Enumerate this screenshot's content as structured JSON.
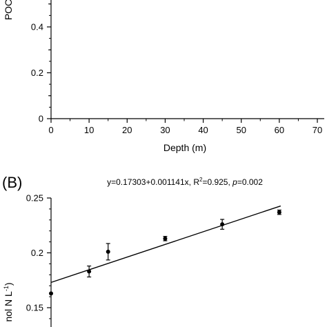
{
  "chart_data": [
    {
      "type": "scatter",
      "panel_label": "",
      "title": "",
      "xlabel": "Depth (m)",
      "ylabel": "POC",
      "xlim": [
        0,
        70
      ],
      "ylim": [
        0,
        0.6
      ],
      "xticks": [
        0,
        10,
        20,
        30,
        40,
        50,
        60,
        70
      ],
      "xtick_labels": [
        "0",
        "10",
        "20",
        "30",
        "40",
        "50",
        "60",
        "70"
      ],
      "yticks": [
        0,
        0.2,
        0.4
      ],
      "ytick_labels": [
        "0",
        "0.2",
        "0.4"
      ],
      "series": []
    },
    {
      "type": "scatter",
      "panel_label": "(B)",
      "title": "",
      "regression_text": {
        "equation": "y=0.17303+0.001141x, R",
        "sup": "2",
        "stats": "=0.925, ",
        "p_label": "p",
        "p_value": "=0.002"
      },
      "ylabel_visible": "nol N L",
      "ylabel_sup": "-1",
      "ylabel_close": ")",
      "xlim": [
        0,
        70
      ],
      "ylim": [
        0.15,
        0.25
      ],
      "yticks": [
        0.15,
        0.2,
        0.25
      ],
      "ytick_labels": [
        "0.15",
        "0.2",
        "0.25"
      ],
      "points": [
        {
          "x": 0,
          "y": 0.163,
          "err": 0
        },
        {
          "x": 10,
          "y": 0.183,
          "err": 0.005
        },
        {
          "x": 15,
          "y": 0.201,
          "err": 0.0075
        },
        {
          "x": 30,
          "y": 0.213,
          "err": 0.002
        },
        {
          "x": 45,
          "y": 0.226,
          "err": 0.0045
        },
        {
          "x": 60,
          "y": 0.237,
          "err": 0.002
        }
      ],
      "fit": {
        "intercept": 0.17303,
        "slope": 0.001141,
        "x_range": [
          0,
          60
        ]
      },
      "grid": false
    }
  ]
}
